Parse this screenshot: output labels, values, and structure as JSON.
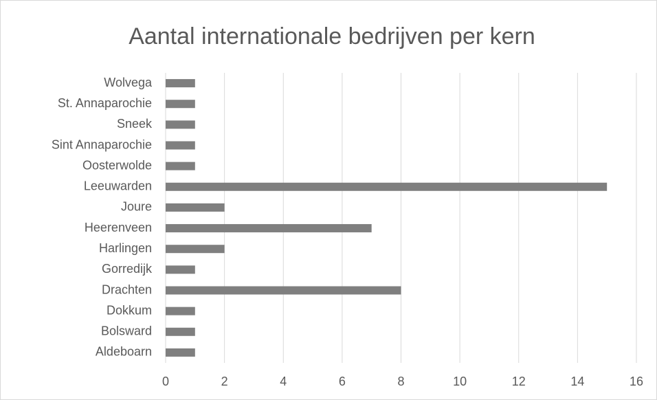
{
  "chart_data": {
    "type": "bar",
    "orientation": "horizontal",
    "title": "Aantal internationale bedrijven per kern",
    "categories": [
      "Wolvega",
      "St. Annaparochie",
      "Sneek",
      "Sint Annaparochie",
      "Oosterwolde",
      "Leeuwarden",
      "Joure",
      "Heerenveen",
      "Harlingen",
      "Gorredijk",
      "Drachten",
      "Dokkum",
      "Bolsward",
      "Aldeboarn"
    ],
    "values": [
      1,
      1,
      1,
      1,
      1,
      15,
      2,
      7,
      2,
      1,
      8,
      1,
      1,
      1
    ],
    "color": "#7f7f7f",
    "xlim": [
      0,
      16
    ],
    "xticks": [
      0,
      2,
      4,
      6,
      8,
      10,
      12,
      14,
      16
    ],
    "grid": true
  }
}
